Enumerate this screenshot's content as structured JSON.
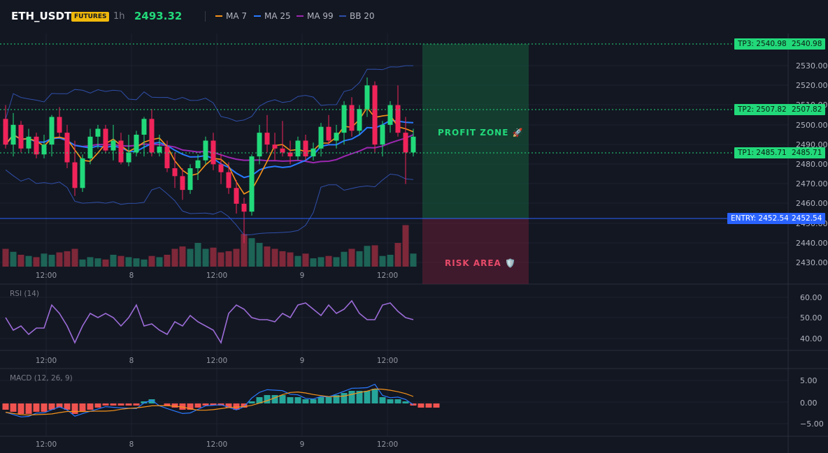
{
  "header": {
    "symbol": "ETH_USDT",
    "badge": "FUTURES",
    "timeframe": "1h",
    "price": "2493.32",
    "legend": [
      {
        "label": "MA 7",
        "color": "#f7931a"
      },
      {
        "label": "MA 25",
        "color": "#2979ff"
      },
      {
        "label": "MA 99",
        "color": "#9c27b0"
      },
      {
        "label": "BB 20",
        "color": "#2f4fa8"
      }
    ]
  },
  "price_axis": [
    "2530.00",
    "2520.00",
    "2510.00",
    "2500.00",
    "2490.00",
    "2480.00",
    "2470.00",
    "2460.00",
    "2450.00",
    "2440.00",
    "2430.00"
  ],
  "levels": {
    "tp3": {
      "label": "TP3: 2540.98",
      "axis": "2540.98",
      "value": 2540.98
    },
    "tp2": {
      "label": "TP2: 2507.82",
      "axis": "2507.82",
      "value": 2507.82
    },
    "tp1": {
      "label": "TP1: 2485.71",
      "axis": "2485.71",
      "value": 2485.71
    },
    "entry": {
      "label": "ENTRY: 2452.54",
      "axis": "2452.54",
      "value": 2452.54
    }
  },
  "zones": {
    "profit": "PROFIT ZONE 🚀",
    "risk": "RISK AREA 🛡️"
  },
  "time_axis": [
    "12:00",
    "8",
    "12:00",
    "9",
    "12:00"
  ],
  "rsi": {
    "label": "RSI (14)",
    "axis": [
      "60.00",
      "50.00",
      "40.00"
    ]
  },
  "macd": {
    "label": "MACD (12, 26, 9)",
    "axis": [
      "5.00",
      "0.00",
      "−5.00"
    ]
  },
  "chart_data": {
    "type": "candlestick",
    "title": "ETH_USDT 1h",
    "y_range": [
      2425,
      2545
    ],
    "candles": [
      {
        "o": 2503,
        "h": 2510,
        "l": 2488,
        "c": 2490
      },
      {
        "o": 2490,
        "h": 2506,
        "l": 2484,
        "c": 2500
      },
      {
        "o": 2500,
        "h": 2502,
        "l": 2486,
        "c": 2488
      },
      {
        "o": 2488,
        "h": 2498,
        "l": 2486,
        "c": 2494
      },
      {
        "o": 2494,
        "h": 2496,
        "l": 2483,
        "c": 2485
      },
      {
        "o": 2485,
        "h": 2495,
        "l": 2483,
        "c": 2490
      },
      {
        "o": 2490,
        "h": 2505,
        "l": 2484,
        "c": 2504
      },
      {
        "o": 2504,
        "h": 2509,
        "l": 2494,
        "c": 2496
      },
      {
        "o": 2496,
        "h": 2500,
        "l": 2478,
        "c": 2481
      },
      {
        "o": 2481,
        "h": 2492,
        "l": 2464,
        "c": 2468
      },
      {
        "o": 2468,
        "h": 2485,
        "l": 2466,
        "c": 2483
      },
      {
        "o": 2483,
        "h": 2498,
        "l": 2480,
        "c": 2494
      },
      {
        "o": 2494,
        "h": 2500,
        "l": 2488,
        "c": 2498
      },
      {
        "o": 2498,
        "h": 2500,
        "l": 2486,
        "c": 2487
      },
      {
        "o": 2487,
        "h": 2500,
        "l": 2482,
        "c": 2492
      },
      {
        "o": 2492,
        "h": 2496,
        "l": 2480,
        "c": 2481
      },
      {
        "o": 2481,
        "h": 2495,
        "l": 2479,
        "c": 2486
      },
      {
        "o": 2486,
        "h": 2497,
        "l": 2484,
        "c": 2495
      },
      {
        "o": 2495,
        "h": 2504,
        "l": 2484,
        "c": 2503
      },
      {
        "o": 2503,
        "h": 2508,
        "l": 2484,
        "c": 2486
      },
      {
        "o": 2486,
        "h": 2495,
        "l": 2484,
        "c": 2489
      },
      {
        "o": 2489,
        "h": 2492,
        "l": 2476,
        "c": 2478
      },
      {
        "o": 2478,
        "h": 2486,
        "l": 2468,
        "c": 2474
      },
      {
        "o": 2474,
        "h": 2478,
        "l": 2462,
        "c": 2467
      },
      {
        "o": 2467,
        "h": 2480,
        "l": 2465,
        "c": 2478
      },
      {
        "o": 2478,
        "h": 2485,
        "l": 2472,
        "c": 2482
      },
      {
        "o": 2482,
        "h": 2494,
        "l": 2480,
        "c": 2492
      },
      {
        "o": 2492,
        "h": 2496,
        "l": 2477,
        "c": 2480
      },
      {
        "o": 2480,
        "h": 2485,
        "l": 2470,
        "c": 2476
      },
      {
        "o": 2476,
        "h": 2481,
        "l": 2465,
        "c": 2468
      },
      {
        "o": 2468,
        "h": 2472,
        "l": 2455,
        "c": 2460
      },
      {
        "o": 2460,
        "h": 2463,
        "l": 2440,
        "c": 2456
      },
      {
        "o": 2456,
        "h": 2485,
        "l": 2454,
        "c": 2484
      },
      {
        "o": 2484,
        "h": 2500,
        "l": 2480,
        "c": 2496
      },
      {
        "o": 2496,
        "h": 2505,
        "l": 2486,
        "c": 2490
      },
      {
        "o": 2490,
        "h": 2496,
        "l": 2482,
        "c": 2488
      },
      {
        "o": 2488,
        "h": 2502,
        "l": 2484,
        "c": 2486
      },
      {
        "o": 2486,
        "h": 2492,
        "l": 2480,
        "c": 2484
      },
      {
        "o": 2484,
        "h": 2494,
        "l": 2482,
        "c": 2492
      },
      {
        "o": 2492,
        "h": 2495,
        "l": 2482,
        "c": 2484
      },
      {
        "o": 2484,
        "h": 2491,
        "l": 2482,
        "c": 2488
      },
      {
        "o": 2488,
        "h": 2501,
        "l": 2484,
        "c": 2499
      },
      {
        "o": 2499,
        "h": 2505,
        "l": 2490,
        "c": 2492
      },
      {
        "o": 2492,
        "h": 2500,
        "l": 2488,
        "c": 2496
      },
      {
        "o": 2496,
        "h": 2512,
        "l": 2490,
        "c": 2510
      },
      {
        "o": 2510,
        "h": 2514,
        "l": 2494,
        "c": 2497
      },
      {
        "o": 2497,
        "h": 2510,
        "l": 2495,
        "c": 2508
      },
      {
        "o": 2508,
        "h": 2524,
        "l": 2504,
        "c": 2520
      },
      {
        "o": 2520,
        "h": 2522,
        "l": 2486,
        "c": 2490
      },
      {
        "o": 2490,
        "h": 2502,
        "l": 2484,
        "c": 2500
      },
      {
        "o": 2500,
        "h": 2512,
        "l": 2496,
        "c": 2510
      },
      {
        "o": 2510,
        "h": 2520,
        "l": 2494,
        "c": 2496
      },
      {
        "o": 2496,
        "h": 2504,
        "l": 2470,
        "c": 2486
      },
      {
        "o": 2486,
        "h": 2498,
        "l": 2484,
        "c": 2494
      }
    ],
    "volume": [
      30,
      25,
      20,
      18,
      16,
      22,
      20,
      24,
      26,
      30,
      12,
      16,
      14,
      12,
      20,
      18,
      16,
      14,
      12,
      18,
      16,
      20,
      30,
      34,
      30,
      40,
      30,
      32,
      24,
      26,
      30,
      55,
      48,
      40,
      34,
      30,
      26,
      24,
      18,
      22,
      14,
      16,
      18,
      16,
      25,
      30,
      26,
      35,
      36,
      18,
      20,
      40,
      70,
      22
    ]
  }
}
